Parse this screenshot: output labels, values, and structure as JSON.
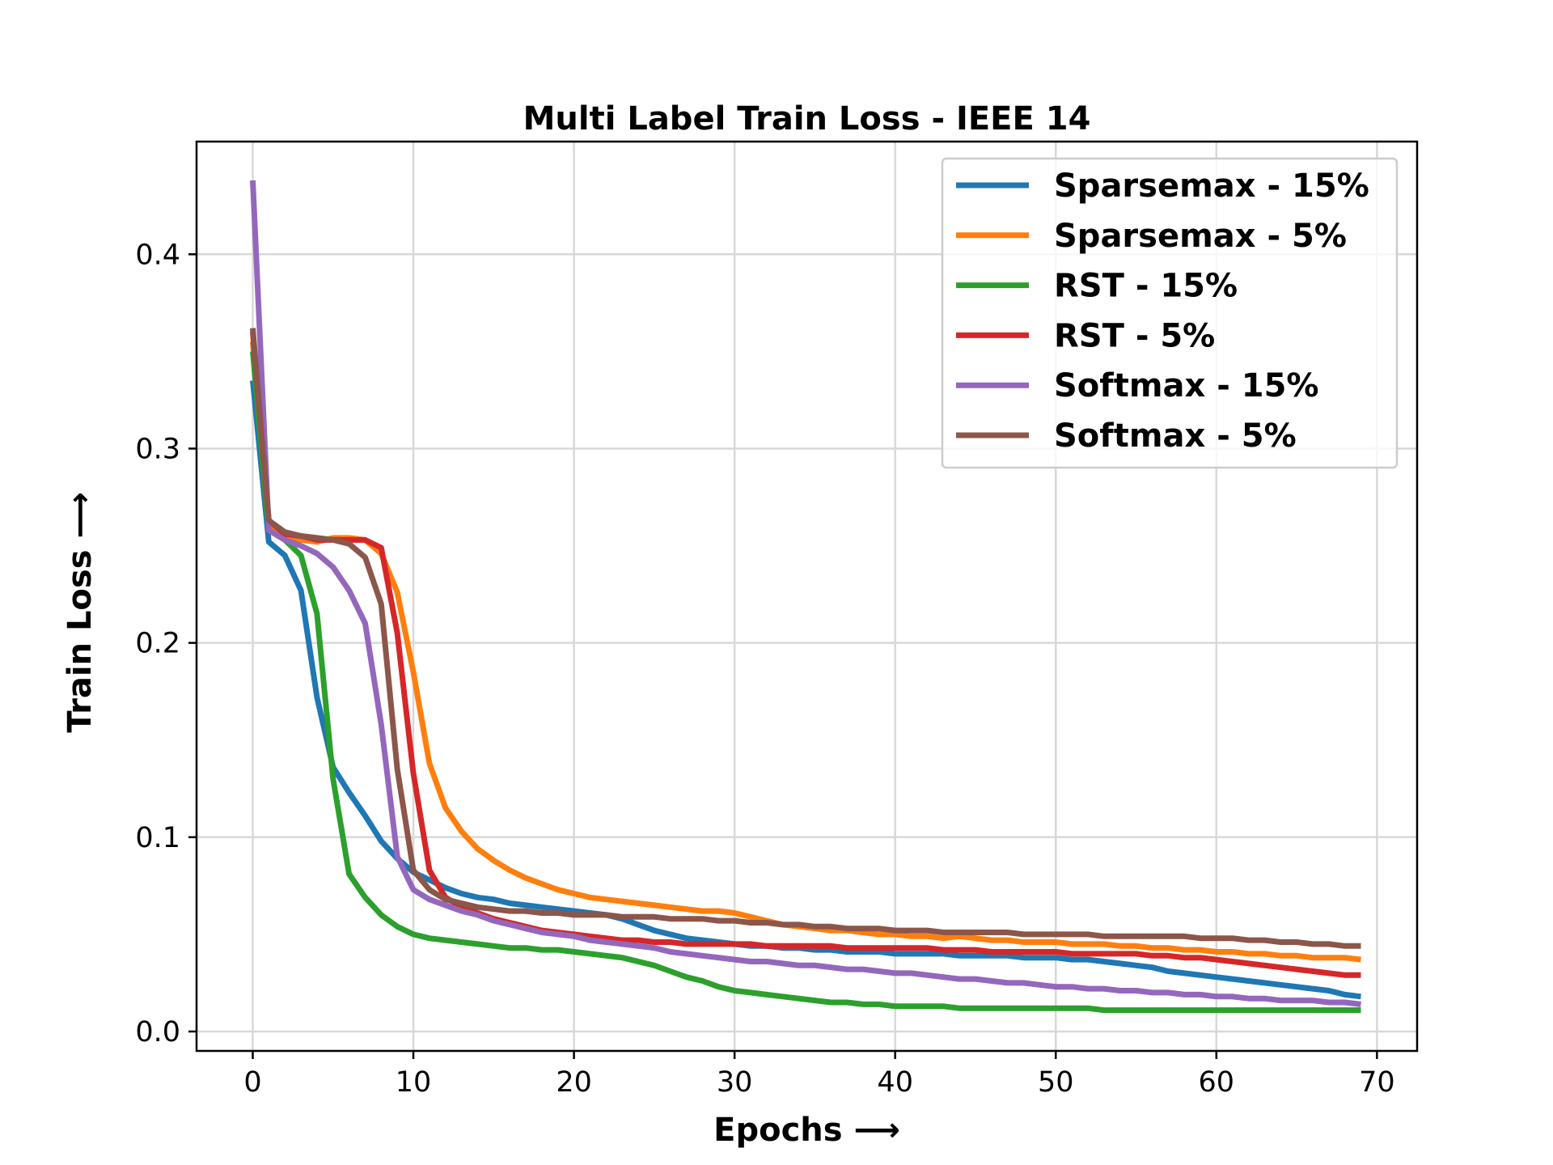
{
  "chart_data": {
    "type": "line",
    "title": "Multi Label Train Loss - IEEE 14",
    "xlabel": "Epochs ⟶",
    "ylabel": "Train Loss ⟶",
    "xlim": [
      -3.5,
      72.5
    ],
    "ylim": [
      -0.01,
      0.458
    ],
    "xticks": [
      0,
      10,
      20,
      30,
      40,
      50,
      60,
      70
    ],
    "yticks": [
      0.0,
      0.1,
      0.2,
      0.3,
      0.4
    ],
    "ytick_labels": [
      "0.0",
      "0.1",
      "0.2",
      "0.3",
      "0.4"
    ],
    "grid": true,
    "legend": "top-right",
    "series": [
      {
        "name": "Sparsemax - 15%",
        "color": "#1f77b4",
        "x": [
          0,
          1,
          2,
          3,
          4,
          5,
          6,
          7,
          8,
          9,
          10,
          11,
          12,
          13,
          14,
          15,
          16,
          17,
          18,
          19,
          20,
          21,
          22,
          23,
          24,
          25,
          26,
          27,
          28,
          29,
          30,
          31,
          32,
          33,
          34,
          35,
          36,
          37,
          38,
          39,
          40,
          41,
          42,
          43,
          44,
          45,
          46,
          47,
          48,
          49,
          50,
          51,
          52,
          53,
          54,
          55,
          56,
          57,
          58,
          59,
          60,
          61,
          62,
          63,
          64,
          65,
          66,
          67,
          68,
          69
        ],
        "y": [
          0.335,
          0.252,
          0.245,
          0.227,
          0.172,
          0.136,
          0.123,
          0.111,
          0.098,
          0.089,
          0.082,
          0.078,
          0.074,
          0.071,
          0.069,
          0.068,
          0.066,
          0.065,
          0.064,
          0.063,
          0.062,
          0.061,
          0.06,
          0.058,
          0.055,
          0.052,
          0.05,
          0.048,
          0.047,
          0.046,
          0.045,
          0.044,
          0.044,
          0.043,
          0.043,
          0.042,
          0.042,
          0.041,
          0.041,
          0.041,
          0.04,
          0.04,
          0.04,
          0.04,
          0.039,
          0.039,
          0.039,
          0.039,
          0.038,
          0.038,
          0.038,
          0.037,
          0.037,
          0.036,
          0.035,
          0.034,
          0.033,
          0.031,
          0.03,
          0.029,
          0.028,
          0.027,
          0.026,
          0.025,
          0.024,
          0.023,
          0.022,
          0.021,
          0.019,
          0.018
        ]
      },
      {
        "name": "Sparsemax - 5%",
        "color": "#ff7f0e",
        "x": [
          0,
          1,
          2,
          3,
          4,
          5,
          6,
          7,
          8,
          9,
          10,
          11,
          12,
          13,
          14,
          15,
          16,
          17,
          18,
          19,
          20,
          21,
          22,
          23,
          24,
          25,
          26,
          27,
          28,
          29,
          30,
          31,
          32,
          33,
          34,
          35,
          36,
          37,
          38,
          39,
          40,
          41,
          42,
          43,
          44,
          45,
          46,
          47,
          48,
          49,
          50,
          51,
          52,
          53,
          54,
          55,
          56,
          57,
          58,
          59,
          60,
          61,
          62,
          63,
          64,
          65,
          66,
          67,
          68,
          69
        ],
        "y": [
          0.355,
          0.262,
          0.255,
          0.253,
          0.252,
          0.254,
          0.254,
          0.253,
          0.246,
          0.226,
          0.185,
          0.138,
          0.115,
          0.103,
          0.094,
          0.088,
          0.083,
          0.079,
          0.076,
          0.073,
          0.071,
          0.069,
          0.068,
          0.067,
          0.066,
          0.065,
          0.064,
          0.063,
          0.062,
          0.062,
          0.061,
          0.059,
          0.057,
          0.055,
          0.054,
          0.053,
          0.052,
          0.052,
          0.051,
          0.05,
          0.05,
          0.049,
          0.049,
          0.048,
          0.049,
          0.048,
          0.047,
          0.047,
          0.046,
          0.046,
          0.046,
          0.045,
          0.045,
          0.045,
          0.044,
          0.044,
          0.043,
          0.043,
          0.042,
          0.042,
          0.041,
          0.041,
          0.04,
          0.04,
          0.039,
          0.039,
          0.038,
          0.038,
          0.038,
          0.037
        ]
      },
      {
        "name": "RST - 15%",
        "color": "#2ca02c",
        "x": [
          0,
          1,
          2,
          3,
          4,
          5,
          6,
          7,
          8,
          9,
          10,
          11,
          12,
          13,
          14,
          15,
          16,
          17,
          18,
          19,
          20,
          21,
          22,
          23,
          24,
          25,
          26,
          27,
          28,
          29,
          30,
          31,
          32,
          33,
          34,
          35,
          36,
          37,
          38,
          39,
          40,
          41,
          42,
          43,
          44,
          45,
          46,
          47,
          48,
          49,
          50,
          51,
          52,
          53,
          54,
          55,
          56,
          57,
          58,
          59,
          60,
          61,
          62,
          63,
          64,
          65,
          66,
          67,
          68,
          69
        ],
        "y": [
          0.35,
          0.258,
          0.253,
          0.245,
          0.215,
          0.13,
          0.081,
          0.069,
          0.06,
          0.054,
          0.05,
          0.048,
          0.047,
          0.046,
          0.045,
          0.044,
          0.043,
          0.043,
          0.042,
          0.042,
          0.041,
          0.04,
          0.039,
          0.038,
          0.036,
          0.034,
          0.031,
          0.028,
          0.026,
          0.023,
          0.021,
          0.02,
          0.019,
          0.018,
          0.017,
          0.016,
          0.015,
          0.015,
          0.014,
          0.014,
          0.013,
          0.013,
          0.013,
          0.013,
          0.012,
          0.012,
          0.012,
          0.012,
          0.012,
          0.012,
          0.012,
          0.012,
          0.012,
          0.011,
          0.011,
          0.011,
          0.011,
          0.011,
          0.011,
          0.011,
          0.011,
          0.011,
          0.011,
          0.011,
          0.011,
          0.011,
          0.011,
          0.011,
          0.011,
          0.011
        ]
      },
      {
        "name": "RST - 5%",
        "color": "#d62728",
        "x": [
          0,
          1,
          2,
          3,
          4,
          5,
          6,
          7,
          8,
          9,
          10,
          11,
          12,
          13,
          14,
          15,
          16,
          17,
          18,
          19,
          20,
          21,
          22,
          23,
          24,
          25,
          26,
          27,
          28,
          29,
          30,
          31,
          32,
          33,
          34,
          35,
          36,
          37,
          38,
          39,
          40,
          41,
          42,
          43,
          44,
          45,
          46,
          47,
          48,
          49,
          50,
          51,
          52,
          53,
          54,
          55,
          56,
          57,
          58,
          59,
          60,
          61,
          62,
          63,
          64,
          65,
          66,
          67,
          68,
          69
        ],
        "y": [
          0.36,
          0.263,
          0.256,
          0.255,
          0.253,
          0.253,
          0.253,
          0.253,
          0.249,
          0.205,
          0.133,
          0.083,
          0.069,
          0.064,
          0.061,
          0.058,
          0.056,
          0.054,
          0.052,
          0.051,
          0.05,
          0.049,
          0.048,
          0.047,
          0.047,
          0.046,
          0.046,
          0.045,
          0.045,
          0.045,
          0.045,
          0.045,
          0.044,
          0.044,
          0.044,
          0.044,
          0.044,
          0.043,
          0.043,
          0.043,
          0.043,
          0.043,
          0.043,
          0.042,
          0.042,
          0.042,
          0.041,
          0.041,
          0.041,
          0.041,
          0.041,
          0.04,
          0.04,
          0.04,
          0.04,
          0.04,
          0.039,
          0.039,
          0.038,
          0.038,
          0.037,
          0.036,
          0.035,
          0.034,
          0.033,
          0.032,
          0.031,
          0.03,
          0.029,
          0.029
        ]
      },
      {
        "name": "Softmax - 15%",
        "color": "#9467bd",
        "x": [
          0,
          1,
          2,
          3,
          4,
          5,
          6,
          7,
          8,
          9,
          10,
          11,
          12,
          13,
          14,
          15,
          16,
          17,
          18,
          19,
          20,
          21,
          22,
          23,
          24,
          25,
          26,
          27,
          28,
          29,
          30,
          31,
          32,
          33,
          34,
          35,
          36,
          37,
          38,
          39,
          40,
          41,
          42,
          43,
          44,
          45,
          46,
          47,
          48,
          49,
          50,
          51,
          52,
          53,
          54,
          55,
          56,
          57,
          58,
          59,
          60,
          61,
          62,
          63,
          64,
          65,
          66,
          67,
          68,
          69
        ],
        "y": [
          0.438,
          0.258,
          0.253,
          0.25,
          0.246,
          0.239,
          0.227,
          0.21,
          0.158,
          0.09,
          0.073,
          0.068,
          0.065,
          0.062,
          0.06,
          0.057,
          0.055,
          0.053,
          0.051,
          0.05,
          0.049,
          0.047,
          0.046,
          0.045,
          0.044,
          0.043,
          0.041,
          0.04,
          0.039,
          0.038,
          0.037,
          0.036,
          0.036,
          0.035,
          0.034,
          0.034,
          0.033,
          0.032,
          0.032,
          0.031,
          0.03,
          0.03,
          0.029,
          0.028,
          0.027,
          0.027,
          0.026,
          0.025,
          0.025,
          0.024,
          0.023,
          0.023,
          0.022,
          0.022,
          0.021,
          0.021,
          0.02,
          0.02,
          0.019,
          0.019,
          0.018,
          0.018,
          0.017,
          0.017,
          0.016,
          0.016,
          0.016,
          0.015,
          0.015,
          0.014
        ]
      },
      {
        "name": "Softmax - 5%",
        "color": "#8c564b",
        "x": [
          0,
          1,
          2,
          3,
          4,
          5,
          6,
          7,
          8,
          9,
          10,
          11,
          12,
          13,
          14,
          15,
          16,
          17,
          18,
          19,
          20,
          21,
          22,
          23,
          24,
          25,
          26,
          27,
          28,
          29,
          30,
          31,
          32,
          33,
          34,
          35,
          36,
          37,
          38,
          39,
          40,
          41,
          42,
          43,
          44,
          45,
          46,
          47,
          48,
          49,
          50,
          51,
          52,
          53,
          54,
          55,
          56,
          57,
          58,
          59,
          60,
          61,
          62,
          63,
          64,
          65,
          66,
          67,
          68,
          69
        ],
        "y": [
          0.362,
          0.263,
          0.257,
          0.255,
          0.254,
          0.253,
          0.251,
          0.244,
          0.22,
          0.135,
          0.083,
          0.073,
          0.068,
          0.066,
          0.064,
          0.063,
          0.062,
          0.062,
          0.061,
          0.061,
          0.06,
          0.06,
          0.06,
          0.059,
          0.059,
          0.059,
          0.058,
          0.058,
          0.058,
          0.057,
          0.057,
          0.056,
          0.056,
          0.055,
          0.055,
          0.054,
          0.054,
          0.053,
          0.053,
          0.053,
          0.052,
          0.052,
          0.052,
          0.051,
          0.051,
          0.051,
          0.051,
          0.051,
          0.05,
          0.05,
          0.05,
          0.05,
          0.05,
          0.049,
          0.049,
          0.049,
          0.049,
          0.049,
          0.049,
          0.048,
          0.048,
          0.048,
          0.047,
          0.047,
          0.046,
          0.046,
          0.045,
          0.045,
          0.044,
          0.044
        ]
      }
    ]
  }
}
